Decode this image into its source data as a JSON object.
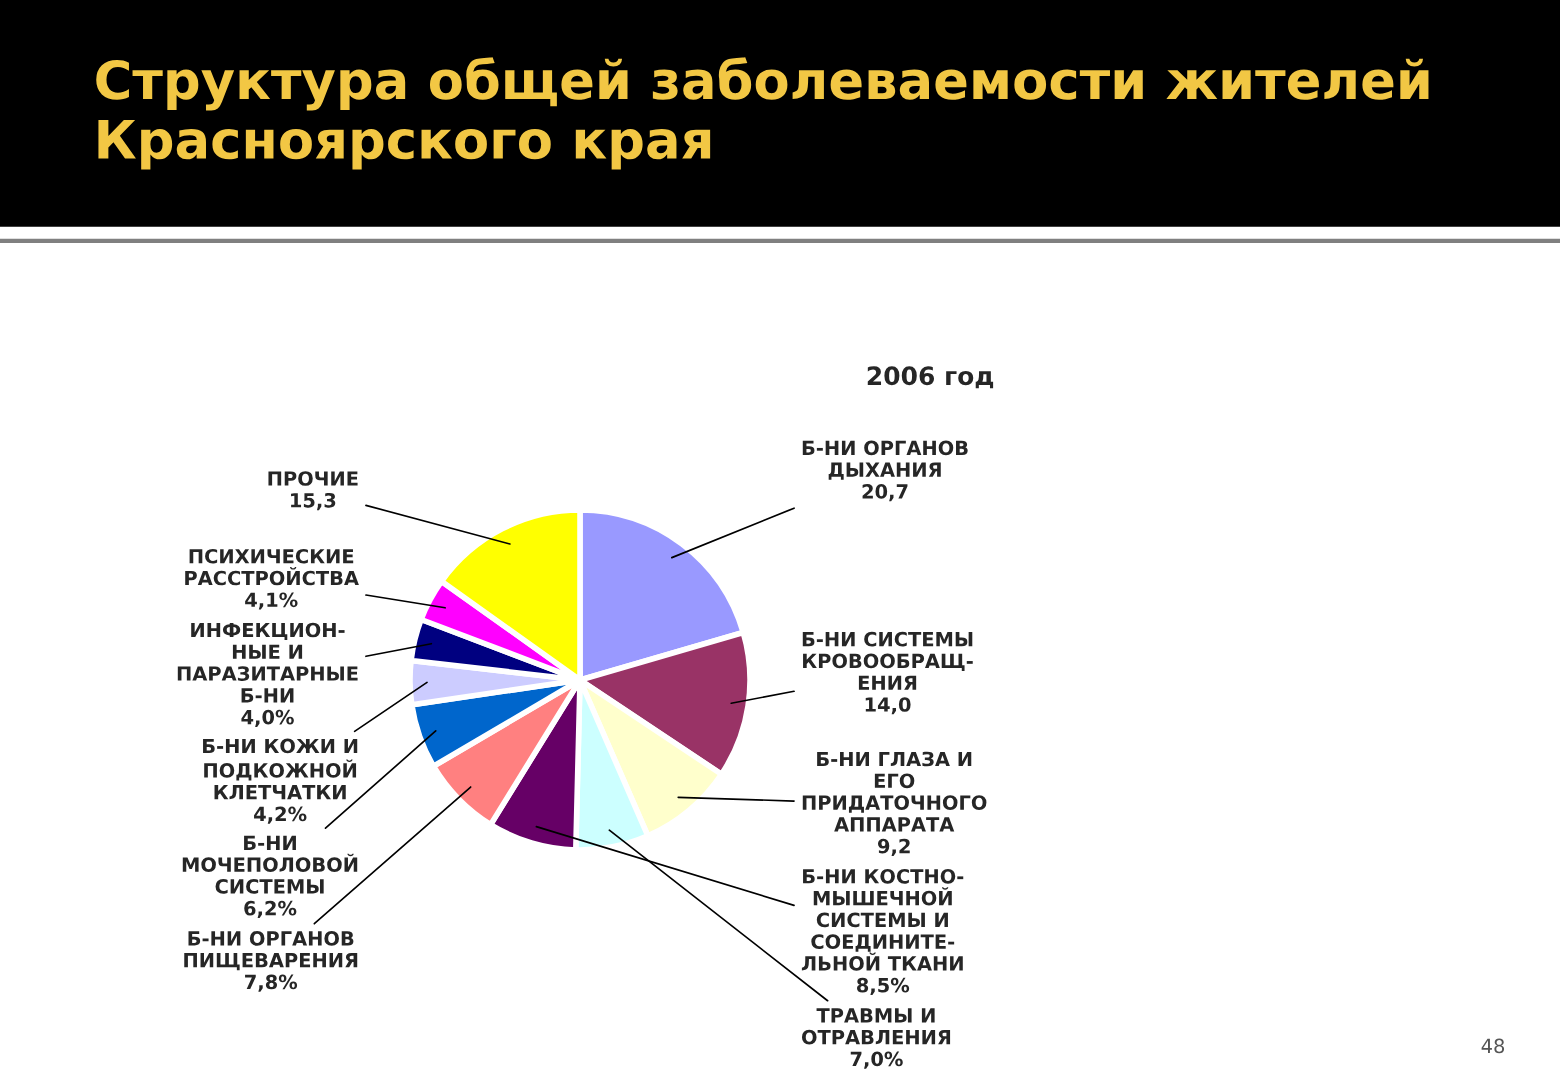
{
  "chart_data": {
    "type": "pie",
    "title": "Структура общей заболеваемости жителей Красноярского края",
    "subtitle": "2006 год",
    "categories": [
      "Б-НИ ОРГАНОВ\nДЫХАНИЯ",
      "Б-НИ СИСТЕМЫ\nКРОВООБРАЩ-\nЕНИЯ",
      "Б-НИ ГЛАЗА И\nЕГО\nПРИДАТОЧНОГО\nАППАРАТА",
      "ТРАВМЫ И\nОТРАВЛЕНИЯ",
      "Б-НИ КОСТНО-\nМЫШЕЧНОЙ\nСИСТЕМЫ И\nСОЕДИНИТЕ-\nЛЬНОЙ ТКАНИ",
      "Б-НИ ОРГАНОВ\nПИЩЕВАРЕНИЯ",
      "Б-НИ\nМОЧЕПОЛОВОЙ\nСИСТЕМЫ",
      "Б-НИ КОЖИ И\nПОДКОЖНОЙ\nКЛЕТЧАТКИ",
      "ИНФЕКЦИОН-\nНЫЕ И\nПАРАЗИТАРНЫЕ\nБ-НИ",
      "ПСИХИЧЕСКИЕ\nРАССТРОЙСТВА",
      "ПРОЧИЕ"
    ],
    "values": [
      20.7,
      14.0,
      9.2,
      7.0,
      8.5,
      7.8,
      6.2,
      4.2,
      4.0,
      4.1,
      15.3
    ],
    "value_labels": [
      "20,7",
      "14,0",
      "9,2",
      "7,0%",
      "8,5%",
      "7,8%",
      "6,2%",
      "4,2%",
      "4,0%",
      "4,1%",
      "15,3"
    ],
    "colors": [
      "#9999ff",
      "#993366",
      "#ffffcc",
      "#ccffff",
      "#660066",
      "#ff8080",
      "#0066cc",
      "#ccccff",
      "#000080",
      "#ff00ff",
      "#ffff00"
    ],
    "annotations": [
      "48"
    ]
  }
}
